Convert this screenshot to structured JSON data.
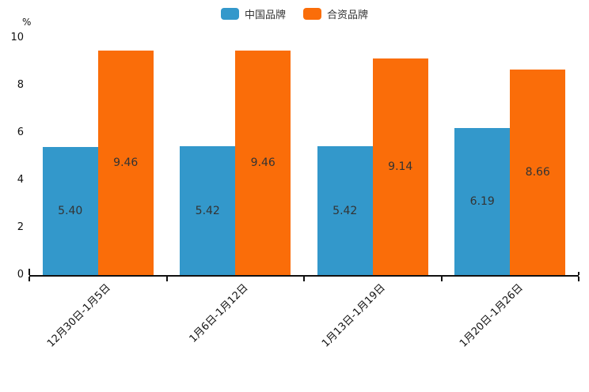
{
  "colors": {
    "series_blue": "#3398cb",
    "series_orange": "#fa6d09",
    "axis": "#111111",
    "value_label_text": "#333333",
    "background": "#ffffff"
  },
  "legend": {
    "items": [
      {
        "label": "中国品牌",
        "color": "#3398cb"
      },
      {
        "label": "合资品牌",
        "color": "#fa6d09"
      }
    ]
  },
  "chart_data": {
    "type": "bar",
    "title": "",
    "xlabel": "",
    "ylabel": "%",
    "ylim": [
      0,
      10
    ],
    "yticks": [
      "0",
      "2",
      "4",
      "6",
      "8",
      "10"
    ],
    "grid": false,
    "legend_position": "top-center",
    "x_tick_label_rotation_deg": 45,
    "categories": [
      "12月30日-1月5日",
      "1月6日-1月12日",
      "1月13日-1月19日",
      "1月20日-1月26日"
    ],
    "series": [
      {
        "name": "中国品牌",
        "color": "#3398cb",
        "values": [
          5.4,
          5.42,
          5.42,
          6.19
        ],
        "value_labels": [
          "5.40",
          "5.42",
          "5.42",
          "6.19"
        ]
      },
      {
        "name": "合资品牌",
        "color": "#fa6d09",
        "values": [
          9.46,
          9.46,
          9.14,
          8.66
        ],
        "value_labels": [
          "9.46",
          "9.46",
          "9.14",
          "8.66"
        ]
      }
    ]
  }
}
